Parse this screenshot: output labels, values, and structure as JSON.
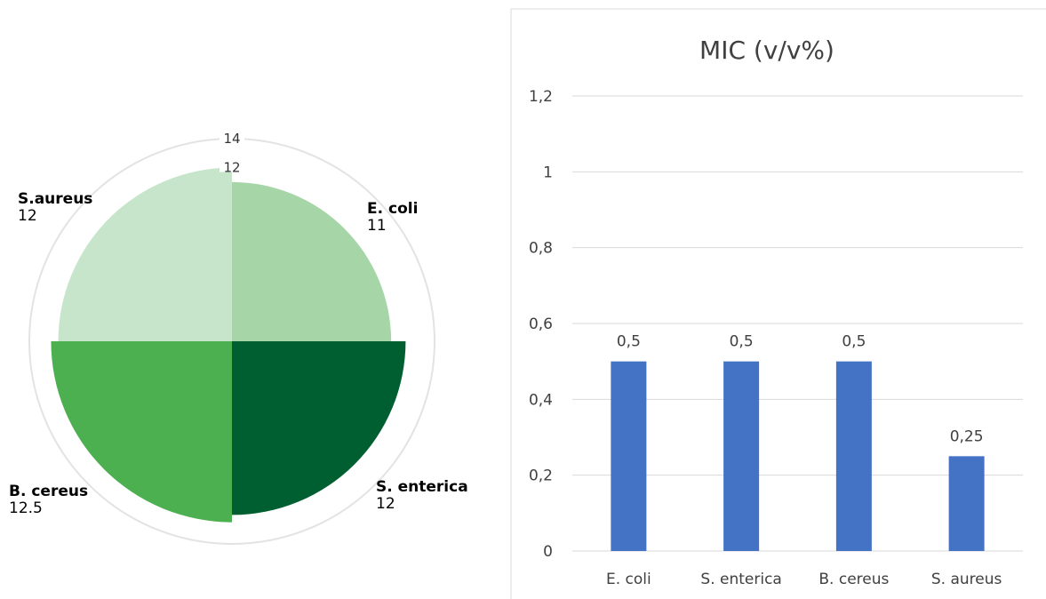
{
  "chart_data": [
    {
      "type": "pie",
      "subtype": "polar-area",
      "categories": [
        "E. coli",
        "S. enterica",
        "B. cereus",
        "S.aureus"
      ],
      "values": [
        11,
        12,
        12.5,
        12
      ],
      "value_labels": [
        "11",
        "12",
        "12.5",
        "12"
      ],
      "radial_ticks": [
        12,
        14
      ],
      "radial_max": 14,
      "colors": [
        "#a6d6a8",
        "#005f30",
        "#4caf50",
        "#c7e5ca"
      ],
      "grid": true,
      "legend": "none"
    },
    {
      "type": "bar",
      "title": "MIC (v/v%)",
      "categories": [
        "E. coli",
        "S. enterica",
        "B. cereus",
        "S. aureus"
      ],
      "values": [
        0.5,
        0.5,
        0.5,
        0.25
      ],
      "value_labels": [
        "0,5",
        "0,5",
        "0,5",
        "0,25"
      ],
      "yticks": [
        "0",
        "0,2",
        "0,4",
        "0,6",
        "0,8",
        "1",
        "1,2"
      ],
      "ylim": [
        0,
        1.2
      ],
      "color": "#4472c4",
      "grid": true,
      "legend": "none"
    }
  ]
}
